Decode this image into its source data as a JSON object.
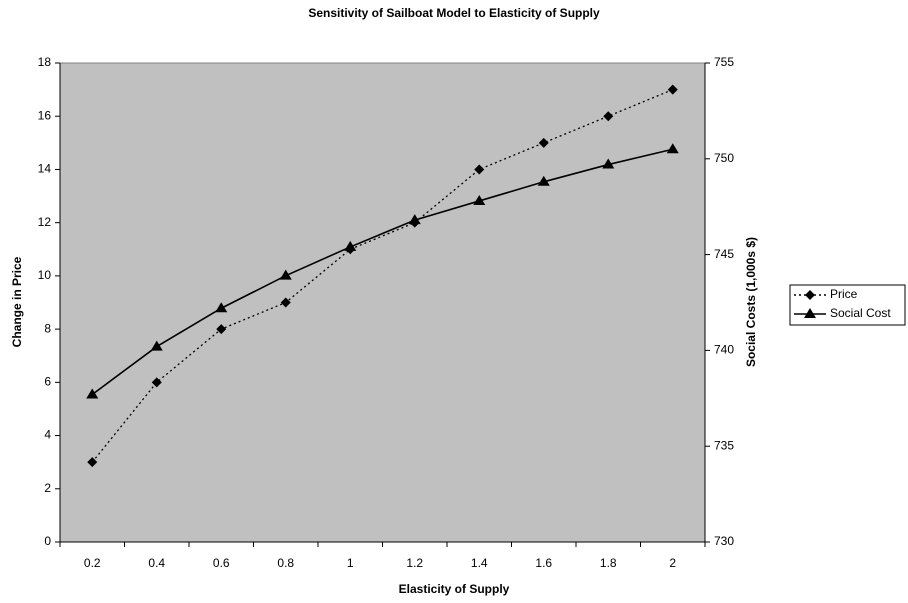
{
  "chart_data": {
    "type": "line",
    "title": "Sensitivity of Sailboat Model to Elasticity of Supply",
    "x_label": "Elasticity of Supply",
    "y_label": "Change in Price",
    "y2_label": "Social Costs (1,000s $)",
    "categories": [
      "0.2",
      "0.4",
      "0.6",
      "0.8",
      "1",
      "1.2",
      "1.4",
      "1.6",
      "1.8",
      "2"
    ],
    "series": [
      {
        "name": "Price",
        "color": "#000000",
        "line_style": "dotted",
        "marker": "diamond",
        "values": [
          3,
          6,
          8,
          9,
          11,
          12,
          14,
          15,
          16,
          17
        ]
      },
      {
        "name": "Social Cost",
        "color": "#000000",
        "line_style": "solid",
        "marker": "triangle",
        "axis": "y2",
        "values": [
          737.7,
          740.2,
          742.2,
          743.9,
          745.4,
          746.8,
          747.8,
          748.8,
          749.7,
          750.5
        ]
      }
    ],
    "ylim": [
      0,
      18
    ],
    "yticks": [
      0,
      2,
      4,
      6,
      8,
      10,
      12,
      14,
      16,
      18
    ],
    "y2lim": [
      730,
      755
    ],
    "y2ticks": [
      730,
      735,
      740,
      745,
      750,
      755
    ],
    "plot_background": "#c0c0c0",
    "legend": "right"
  }
}
